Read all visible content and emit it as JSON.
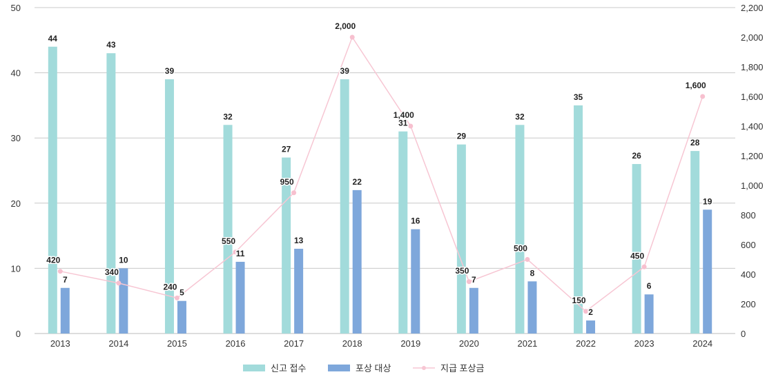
{
  "chart_data": {
    "type": "bar",
    "categories": [
      "2013",
      "2014",
      "2015",
      "2016",
      "2017",
      "2018",
      "2019",
      "2020",
      "2021",
      "2022",
      "2023",
      "2024"
    ],
    "series": [
      {
        "name": "신고 접수",
        "kind": "bar",
        "axis": "left",
        "color": "#a2dbdb",
        "values": [
          44,
          43,
          39,
          32,
          27,
          39,
          31,
          29,
          32,
          35,
          26,
          28
        ]
      },
      {
        "name": "포상 대상",
        "kind": "bar",
        "axis": "left",
        "color": "#7ea7db",
        "values": [
          7,
          10,
          5,
          11,
          13,
          22,
          16,
          7,
          8,
          2,
          6,
          19
        ]
      },
      {
        "name": "지급 포상금",
        "kind": "line",
        "axis": "right",
        "color": "#f7c6d3",
        "values": [
          420,
          340,
          240,
          550,
          950,
          2000,
          1400,
          350,
          500,
          150,
          450,
          1600
        ]
      }
    ],
    "y_left": {
      "range": [
        0,
        50
      ],
      "ticks": [
        "0",
        "10",
        "20",
        "30",
        "40",
        "50"
      ]
    },
    "y_right": {
      "range": [
        0,
        2200
      ],
      "ticks": [
        "0",
        "200",
        "400",
        "600",
        "800",
        "1,000",
        "1,200",
        "1,400",
        "1,600",
        "1,800",
        "2,000",
        "2,200"
      ]
    },
    "grid": true,
    "legend_position": "bottom"
  }
}
